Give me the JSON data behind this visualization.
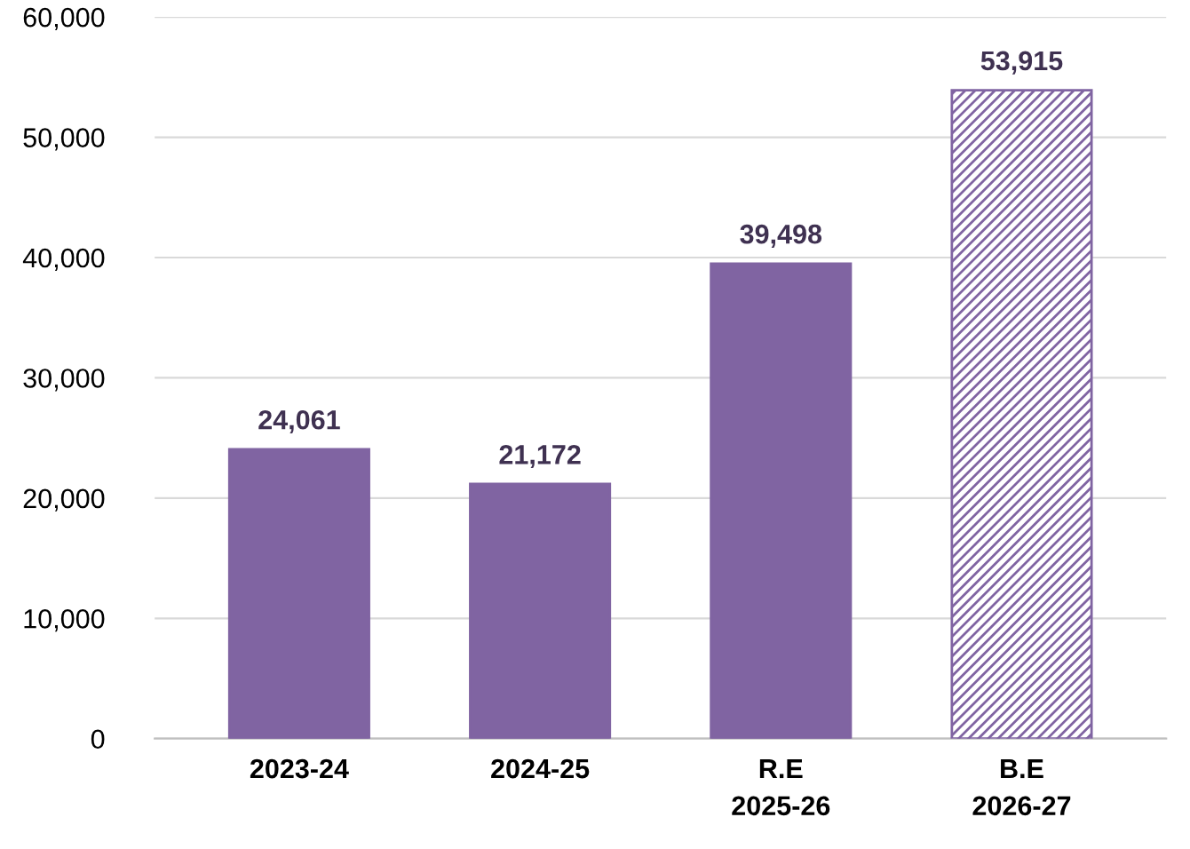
{
  "chart_data": {
    "type": "bar",
    "categories": [
      "2023-24",
      "2024-25",
      "R.E\n2025-26",
      "B.E\n2026-27"
    ],
    "series": [
      {
        "color": "#8064a2",
        "values": [
          24061,
          21172,
          39498,
          null
        ],
        "value_labels": [
          "24,061",
          "21,172",
          "39,498",
          null
        ]
      },
      {
        "color": "#8064a2",
        "line_style": "dashed",
        "values": [
          null,
          null,
          null,
          53915
        ],
        "value_labels": [
          null,
          null,
          null,
          "53,915"
        ]
      }
    ],
    "ylim": [
      0,
      60000
    ],
    "yticks": [
      {
        "value": 0,
        "label": "0"
      },
      {
        "value": 10000,
        "label": "10,000"
      },
      {
        "value": 20000,
        "label": "20,000"
      },
      {
        "value": 30000,
        "label": "30,000"
      },
      {
        "value": 40000,
        "label": "40,000"
      },
      {
        "value": 50000,
        "label": "50,000"
      },
      {
        "value": 60000,
        "label": "60,000"
      }
    ],
    "grid": "y"
  }
}
